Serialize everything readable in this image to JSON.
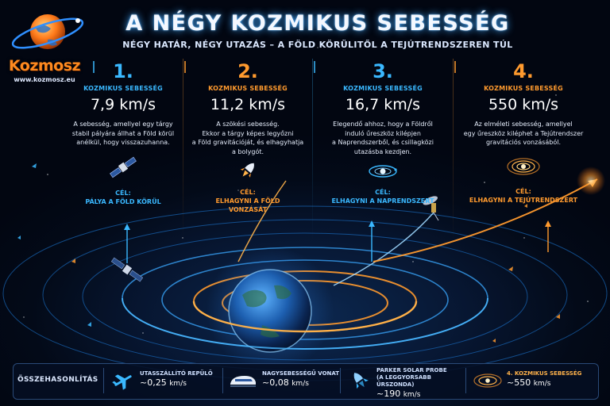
{
  "brand": {
    "name": "Kozmosz",
    "url": "www.kozmosz.eu"
  },
  "title": "A NÉGY KOZMIKUS SEBESSÉG",
  "subtitle": "NÉGY HATÁR, NÉGY UTAZÁS – A FÖLD KÖRÜLITŐL A TEJÚTRENDSZEREN TÚL",
  "velocities": [
    {
      "number": "1.",
      "label": "KOZMIKUS SEBESSÉG",
      "value": "7,9 km/s",
      "desc": [
        "A sebesség, amellyel egy tárgy",
        "stabil pályára állhat a Föld körül",
        "anélkül, hogy visszazuhanna."
      ],
      "goal_prefix": "CÉL:",
      "goal": [
        "PÁLYA A FÖLD KÖRÜL"
      ],
      "color": "#3ab8ff",
      "icon": "satellite-icon"
    },
    {
      "number": "2.",
      "label": "KOZMIKUS SEBESSÉG",
      "value": "11,2 km/s",
      "desc": [
        "A szökési sebesség.",
        "Ekkor a tárgy képes legyőzni",
        "a Föld gravitációját, és elhagyhatja",
        "a bolygót."
      ],
      "goal_prefix": "CÉL:",
      "goal": [
        "ELHAGYNI A FÖLD",
        "VONZÁSÁT"
      ],
      "color": "#ff9a2e",
      "icon": "rocket-icon"
    },
    {
      "number": "3.",
      "label": "KOZMIKUS SEBESSÉG",
      "value": "16,7 km/s",
      "desc": [
        "Elegendő ahhoz, hogy a Földről",
        "induló űreszköz kilépjen",
        "a Naprendszerből, és csillagközi",
        "utazásba kezdjen."
      ],
      "goal_prefix": "CÉL:",
      "goal": [
        "ELHAGYNI A NAPRENDSZERT"
      ],
      "color": "#3ab8ff",
      "icon": "solar-system-icon"
    },
    {
      "number": "4.",
      "label": "KOZMIKUS SEBESSÉG",
      "value": "550 km/s",
      "desc": [
        "Az elméleti sebesség, amellyel",
        "egy űreszköz kiléphet a Tejútrendszer",
        "gravitációs vonzásából."
      ],
      "goal_prefix": "CÉL:",
      "goal": [
        "ELHAGYNI A TEJÚTRENDSZERT"
      ],
      "color": "#ff9a2e",
      "icon": "galaxy-icon"
    }
  ],
  "comparison": {
    "title": "ÖSSZEHASONLÍTÁS",
    "items": [
      {
        "label": [
          "UTASSZÁLLÍTÓ REPÜLŐ"
        ],
        "value": "~0,25",
        "unit": "km/s",
        "icon": "airplane-icon"
      },
      {
        "label": [
          "NAGYSEBESSÉGŰ VONAT"
        ],
        "value": "~0,08",
        "unit": "km/s",
        "icon": "train-icon"
      },
      {
        "label": [
          "PARKER SOLAR PROBE",
          "(A LEGGYORSABB ŰRSZONDA)"
        ],
        "value": "~190",
        "unit": "km/s",
        "icon": "probe-icon"
      },
      {
        "label": [
          "4. KOZMIKUS SEBESSÉG"
        ],
        "value": "~550",
        "unit": "km/s",
        "icon": "galaxy-icon"
      }
    ]
  }
}
